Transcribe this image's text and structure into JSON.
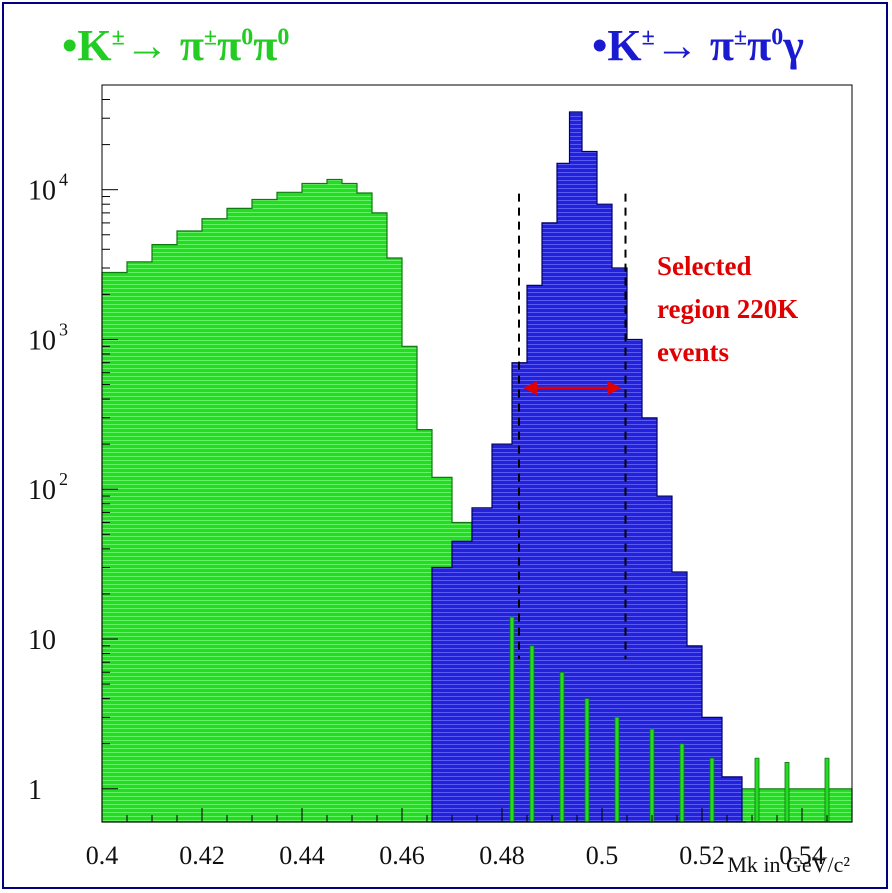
{
  "legend": {
    "green_prefix": "•K",
    "green_sup": "±",
    "green_arrow": "→ π",
    "green_sup2": "±",
    "green_pi0": "π",
    "green_sup3": "0",
    "green_pi0b": "π",
    "green_sup4": "0",
    "blue_prefix": "•K",
    "blue_sup": "±",
    "blue_arrow": "→ π",
    "blue_sup2": "±",
    "blue_pi0": "π",
    "blue_sup3": "0",
    "blue_gamma": "γ"
  },
  "colors": {
    "green": "#22dd22",
    "blue": "#2222dd",
    "annotation": "#e00000",
    "legend_green": "#22cc22",
    "legend_blue": "#1a1ad0",
    "frame": "#000080"
  },
  "chart_data": {
    "type": "histogram",
    "xlabel": "Mk in GeV/c²",
    "xlim": [
      0.4,
      0.55
    ],
    "ylim": [
      0.6,
      50000
    ],
    "y_scale": "log",
    "x_ticks": [
      {
        "value": 0.4,
        "label": "0.4"
      },
      {
        "value": 0.42,
        "label": "0.42"
      },
      {
        "value": 0.44,
        "label": "0.44"
      },
      {
        "value": 0.46,
        "label": "0.46"
      },
      {
        "value": 0.48,
        "label": "0.48"
      },
      {
        "value": 0.5,
        "label": "0.5"
      },
      {
        "value": 0.52,
        "label": "0.52"
      },
      {
        "value": 0.54,
        "label": "0.54"
      }
    ],
    "y_ticks": [
      {
        "value": 10000,
        "base": "10",
        "exp": "4"
      },
      {
        "value": 1000,
        "base": "10",
        "exp": "3"
      },
      {
        "value": 100,
        "base": "10",
        "exp": "2"
      },
      {
        "value": 10,
        "base": "10",
        "exp": ""
      },
      {
        "value": 1,
        "base": "1",
        "exp": ""
      }
    ],
    "series": [
      {
        "name": "K± → π±π0π0",
        "color": "#22dd22",
        "points": [
          [
            0.4,
            2800
          ],
          [
            0.405,
            3300
          ],
          [
            0.41,
            4300
          ],
          [
            0.415,
            5300
          ],
          [
            0.42,
            6400
          ],
          [
            0.425,
            7500
          ],
          [
            0.43,
            8600
          ],
          [
            0.435,
            9600
          ],
          [
            0.44,
            11000
          ],
          [
            0.445,
            11700
          ],
          [
            0.448,
            11000
          ],
          [
            0.451,
            9500
          ],
          [
            0.454,
            7000
          ],
          [
            0.457,
            3500
          ],
          [
            0.46,
            900
          ],
          [
            0.463,
            250
          ],
          [
            0.466,
            120
          ],
          [
            0.47,
            60
          ],
          [
            0.474,
            35
          ],
          [
            0.478,
            22
          ],
          [
            0.482,
            14
          ],
          [
            0.486,
            9
          ],
          [
            0.49,
            6
          ],
          [
            0.494,
            4
          ],
          [
            0.498,
            3
          ],
          [
            0.502,
            2
          ],
          [
            0.508,
            1.5
          ],
          [
            0.515,
            1.2
          ],
          [
            0.52,
            1.0
          ],
          [
            0.55,
            1.0
          ]
        ]
      },
      {
        "name": "K± → π±π0γ",
        "color": "#2222dd",
        "points": [
          [
            0.466,
            30
          ],
          [
            0.47,
            45
          ],
          [
            0.474,
            75
          ],
          [
            0.478,
            200
          ],
          [
            0.482,
            700
          ],
          [
            0.485,
            2300
          ],
          [
            0.488,
            6000
          ],
          [
            0.491,
            15000
          ],
          [
            0.4935,
            33000
          ],
          [
            0.496,
            18000
          ],
          [
            0.499,
            8000
          ],
          [
            0.502,
            3000
          ],
          [
            0.505,
            1000
          ],
          [
            0.508,
            300
          ],
          [
            0.511,
            90
          ],
          [
            0.514,
            28
          ],
          [
            0.517,
            9
          ],
          [
            0.52,
            3
          ],
          [
            0.524,
            1.2
          ],
          [
            0.528,
            0.6
          ]
        ]
      }
    ],
    "selection_lines": [
      0.4834,
      0.5047
    ],
    "annotation": {
      "lines": [
        "Selected",
        "region 220K",
        "events"
      ]
    }
  }
}
